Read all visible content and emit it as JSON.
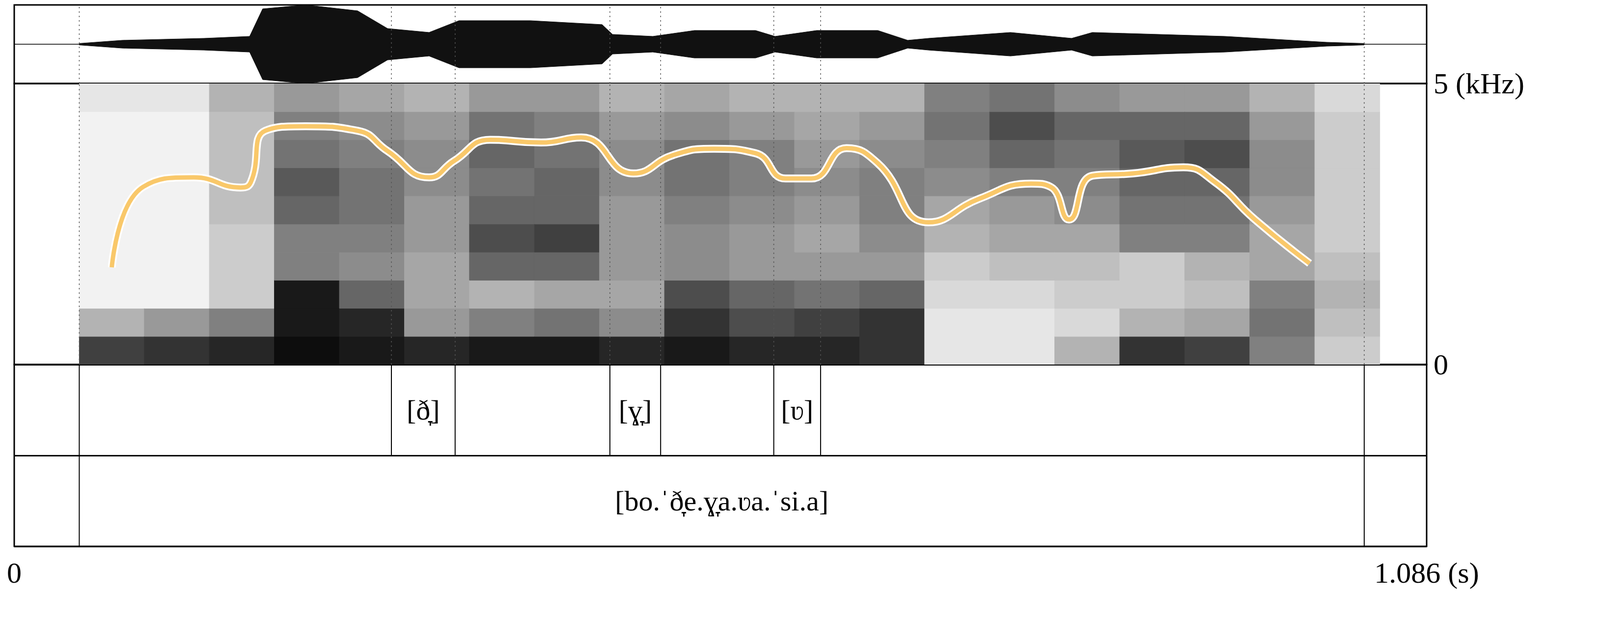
{
  "chart_data": {
    "type": "spectrogram",
    "xlim": [
      0,
      1.086
    ],
    "xticks": [
      0,
      {
        "value": 1.086,
        "label": "1.086 (s)"
      }
    ],
    "ylim": [
      0,
      5
    ],
    "yticks": [
      0,
      {
        "value": 5,
        "label": "5 (kHz)"
      }
    ],
    "waveform": {
      "x": [
        0.05,
        0.083,
        0.146,
        0.181,
        0.191,
        0.224,
        0.264,
        0.287,
        0.319,
        0.342,
        0.397,
        0.452,
        0.46,
        0.491,
        0.523,
        0.57,
        0.585,
        0.617,
        0.664,
        0.687,
        0.703,
        0.766,
        0.813,
        0.829,
        0.931,
        1.009,
        1.038
      ],
      "amplitude": [
        0.02,
        0.1,
        0.15,
        0.2,
        0.9,
        1.0,
        0.85,
        0.4,
        0.3,
        0.6,
        0.6,
        0.5,
        0.25,
        0.2,
        0.35,
        0.35,
        0.2,
        0.35,
        0.35,
        0.1,
        0.15,
        0.3,
        0.15,
        0.3,
        0.2,
        0.05,
        0.02
      ],
      "ylim": [
        -1,
        1
      ]
    },
    "spectrogram": {
      "time_edges": [
        0.05,
        0.1,
        0.15,
        0.2,
        0.25,
        0.3,
        0.35,
        0.4,
        0.45,
        0.5,
        0.55,
        0.6,
        0.65,
        0.7,
        0.75,
        0.8,
        0.85,
        0.9,
        0.95,
        1.0,
        1.05
      ],
      "freq_edges": [
        0,
        0.5,
        1,
        1.5,
        2,
        2.5,
        3,
        3.5,
        4,
        4.5,
        5
      ],
      "intensity": [
        [
          0.75,
          0.3,
          0.05,
          0.05,
          0.05,
          0.05,
          0.05,
          0.05,
          0.05,
          0.1
        ],
        [
          0.8,
          0.4,
          0.05,
          0.05,
          0.05,
          0.05,
          0.05,
          0.05,
          0.05,
          0.1
        ],
        [
          0.85,
          0.5,
          0.2,
          0.2,
          0.2,
          0.25,
          0.25,
          0.25,
          0.25,
          0.3
        ],
        [
          0.95,
          0.9,
          0.9,
          0.5,
          0.5,
          0.6,
          0.65,
          0.55,
          0.5,
          0.4
        ],
        [
          0.9,
          0.85,
          0.6,
          0.45,
          0.5,
          0.55,
          0.55,
          0.5,
          0.45,
          0.35
        ],
        [
          0.85,
          0.4,
          0.35,
          0.35,
          0.4,
          0.4,
          0.45,
          0.45,
          0.4,
          0.3
        ],
        [
          0.9,
          0.5,
          0.3,
          0.6,
          0.7,
          0.6,
          0.55,
          0.6,
          0.55,
          0.4
        ],
        [
          0.9,
          0.55,
          0.35,
          0.6,
          0.75,
          0.6,
          0.6,
          0.55,
          0.5,
          0.4
        ],
        [
          0.85,
          0.45,
          0.35,
          0.4,
          0.4,
          0.4,
          0.45,
          0.45,
          0.4,
          0.3
        ],
        [
          0.9,
          0.8,
          0.7,
          0.45,
          0.45,
          0.5,
          0.55,
          0.55,
          0.45,
          0.35
        ],
        [
          0.85,
          0.7,
          0.6,
          0.4,
          0.4,
          0.45,
          0.5,
          0.5,
          0.4,
          0.3
        ],
        [
          0.85,
          0.75,
          0.55,
          0.4,
          0.35,
          0.4,
          0.45,
          0.4,
          0.35,
          0.3
        ],
        [
          0.8,
          0.8,
          0.6,
          0.4,
          0.45,
          0.5,
          0.5,
          0.45,
          0.4,
          0.3
        ],
        [
          0.1,
          0.1,
          0.15,
          0.2,
          0.3,
          0.35,
          0.45,
          0.5,
          0.55,
          0.5
        ],
        [
          0.1,
          0.1,
          0.15,
          0.25,
          0.35,
          0.4,
          0.5,
          0.6,
          0.7,
          0.55
        ],
        [
          0.3,
          0.15,
          0.2,
          0.25,
          0.35,
          0.45,
          0.5,
          0.55,
          0.6,
          0.45
        ],
        [
          0.8,
          0.3,
          0.2,
          0.2,
          0.5,
          0.55,
          0.6,
          0.65,
          0.6,
          0.4
        ],
        [
          0.75,
          0.35,
          0.25,
          0.3,
          0.5,
          0.55,
          0.6,
          0.7,
          0.6,
          0.4
        ],
        [
          0.5,
          0.55,
          0.5,
          0.35,
          0.35,
          0.4,
          0.45,
          0.45,
          0.4,
          0.3
        ],
        [
          0.2,
          0.25,
          0.3,
          0.25,
          0.2,
          0.2,
          0.2,
          0.2,
          0.2,
          0.15
        ]
      ],
      "intensity_range": [
        0,
        1
      ]
    },
    "series": [
      {
        "type": "line",
        "color": "#f9c86a",
        "x": [
          0.075,
          0.099,
          0.138,
          0.174,
          0.182,
          0.193,
          0.224,
          0.264,
          0.287,
          0.319,
          0.338,
          0.366,
          0.405,
          0.436,
          0.476,
          0.507,
          0.538,
          0.57,
          0.593,
          0.613,
          0.64,
          0.664,
          0.703,
          0.742,
          0.782,
          0.797,
          0.811,
          0.829,
          0.86,
          0.899,
          0.923,
          0.954,
          0.996
        ],
        "values": [
          1.73,
          3.16,
          3.33,
          3.15,
          3.25,
          4.16,
          4.24,
          4.16,
          3.8,
          3.33,
          3.62,
          4.0,
          3.95,
          4.04,
          3.4,
          3.73,
          3.84,
          3.76,
          3.31,
          3.31,
          3.85,
          3.58,
          2.53,
          2.95,
          3.22,
          3.16,
          2.58,
          3.36,
          3.4,
          3.51,
          3.25,
          2.58,
          1.8
        ]
      }
    ],
    "tiers": [
      {
        "intervals": [
          {
            "start": 0.29,
            "end": 0.339,
            "label": "[ð̞]"
          },
          {
            "start": 0.458,
            "end": 0.497,
            "label": "[ɣ̞]"
          },
          {
            "start": 0.584,
            "end": 0.62,
            "label": "[ʋ]"
          }
        ]
      },
      {
        "intervals": [
          {
            "start": 0.05,
            "end": 1.038,
            "label": "[bo.ˈð̞e.ɣ̞a.ʋa.ˈsi.a]"
          }
        ]
      }
    ]
  }
}
